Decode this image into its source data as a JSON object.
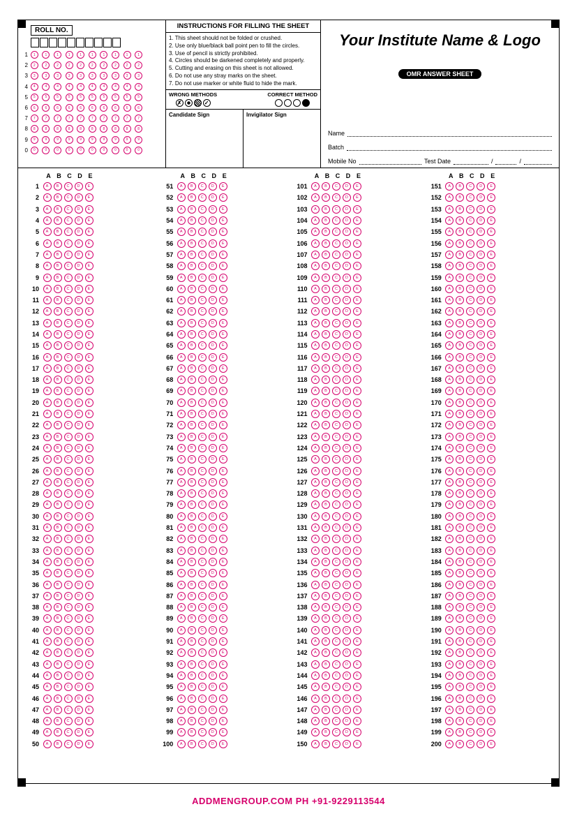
{
  "roll": {
    "title": "ROLL NO.",
    "columns": 10,
    "digits": [
      "1",
      "2",
      "3",
      "4",
      "5",
      "6",
      "7",
      "8",
      "9",
      "0"
    ]
  },
  "instructions": {
    "title": "INSTRUCTIONS FOR FILLING THE SHEET",
    "items": [
      "This sheet should not be folded or crushed.",
      "Use only blue/black ball point pen to fill the circles.",
      "Use of pencil is strictly prohibited.",
      "Circles should be darkened completely and properly.",
      "Cutting and erasing on this sheet is not allowed.",
      "Do not use any stray marks on the sheet.",
      "Do not use marker or white fluid to hide the mark."
    ],
    "wrong_label": "WRONG METHODS",
    "correct_label": "CORRECT METHOD"
  },
  "signs": {
    "candidate": "Candidate Sign",
    "invigilator": "Invigilator Sign"
  },
  "header": {
    "institute": "Your Institute Name & Logo",
    "pill": "OMR ANSWER SHEET",
    "name_label": "Name",
    "batch_label": "Batch",
    "mobile_label": "Mobile No",
    "testdate_label": "Test Date"
  },
  "answers": {
    "options": [
      "A",
      "B",
      "C",
      "D",
      "E"
    ],
    "total_questions": 200,
    "columns": 4,
    "rows_per_col": 50,
    "bubble_color": "#d6006c"
  },
  "footer": {
    "text": "ADDMENGROUP.COM    PH +91-9229113544",
    "color": "#d6006c"
  }
}
